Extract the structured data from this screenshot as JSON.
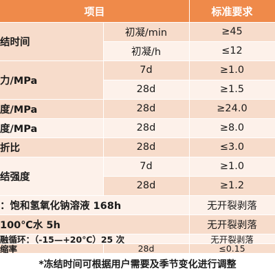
{
  "header": {
    "col_item": "项目",
    "col_req": "标准要求"
  },
  "rows": {
    "r1": {
      "item": "结时间",
      "sub1": "初凝/min",
      "req1": "≥45",
      "sub2": "初凝/h",
      "req2": "≤12"
    },
    "r2": {
      "item": "力/MPa",
      "sub1": "7d",
      "req1": "≥1.0",
      "sub2": "28d",
      "req2": "≥1.5"
    },
    "r3": {
      "item": "度/MPa",
      "sub": "28d",
      "req": "≥24.0"
    },
    "r4": {
      "item": "度/MPa",
      "sub": "28d",
      "req": "≥8.0"
    },
    "r5": {
      "item": "折比",
      "sub": "28d",
      "req": "≤3.0"
    },
    "r6": {
      "item": "结强度",
      "sub1": "7d",
      "req1": "≥1.0",
      "sub2": "28d",
      "req2": "≥1.2"
    },
    "r7": {
      "item": "：饱和氢氧化钠溶液 168h",
      "req": "无开裂剥落"
    },
    "r8": {
      "item": "100℃水 5h",
      "req": "无开裂剥落"
    },
    "r9": {
      "item": "融循环：（-15—+20℃）25 次",
      "req": "无开裂剥落"
    },
    "r10": {
      "item": "缩率",
      "sub": "28d",
      "req": "≤0.15"
    }
  },
  "footnote": "*冻结时间可根据用户需要及季节变化进行调整"
}
